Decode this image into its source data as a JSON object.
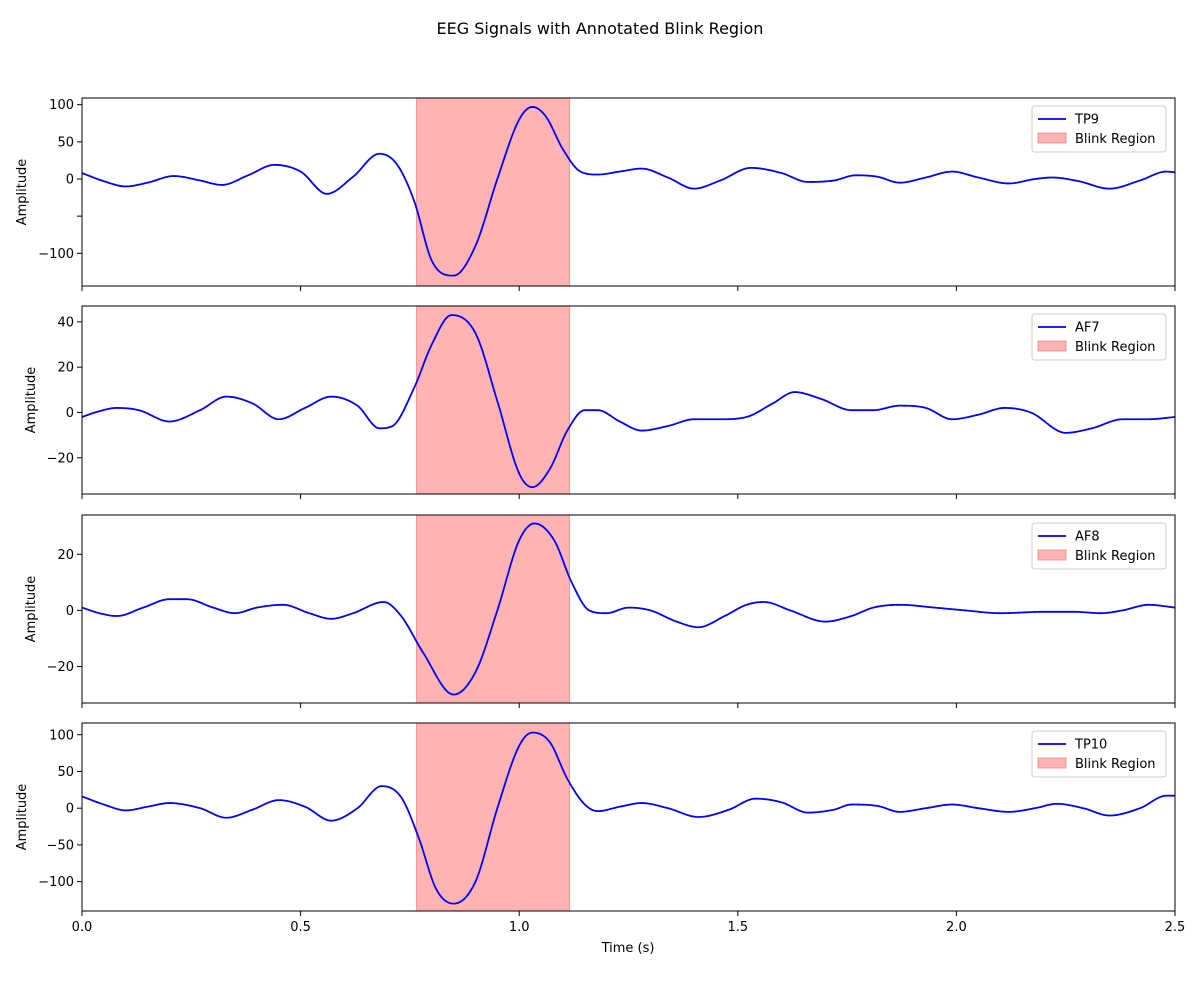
{
  "chart_data": {
    "type": "line",
    "title": "EEG Signals with Annotated Blink Region",
    "xlabel": "Time (s)",
    "xlim": [
      0,
      2.5
    ],
    "xticks": [
      0.0,
      0.5,
      1.0,
      1.5,
      2.0,
      2.5
    ],
    "xtick_labels": [
      "0.0",
      "0.5",
      "1.0",
      "1.5",
      "2.0",
      "2.5"
    ],
    "blink_region": {
      "label": "Blink Region",
      "x_start": 0.765,
      "x_end": 1.115,
      "color": "#ff9999"
    },
    "line_color": "#0000ff",
    "legend_position": "upper right",
    "grid": false,
    "panels": [
      {
        "name": "TP9",
        "ylabel": "Amplitude",
        "ylim": [
          -144,
          109
        ],
        "yticks": [
          100,
          50,
          0,
          -50,
          -100
        ],
        "ytick_labels": [
          "100",
          "50",
          "0",
          "−100"
        ],
        "ytick_label_values": [
          100,
          50,
          0,
          -100
        ],
        "series": {
          "name": "TP9",
          "x": [
            0.0,
            0.05,
            0.1,
            0.15,
            0.21,
            0.27,
            0.32,
            0.38,
            0.44,
            0.5,
            0.56,
            0.62,
            0.68,
            0.72,
            0.76,
            0.8,
            0.85,
            0.9,
            0.95,
            1.0,
            1.03,
            1.06,
            1.1,
            1.14,
            1.18,
            1.23,
            1.28,
            1.34,
            1.4,
            1.46,
            1.53,
            1.6,
            1.66,
            1.72,
            1.77,
            1.82,
            1.87,
            1.93,
            1.99,
            2.05,
            2.12,
            2.18,
            2.22,
            2.28,
            2.35,
            2.42,
            2.48,
            2.5
          ],
          "y": [
            8,
            -3,
            -10,
            -5,
            4,
            -2,
            -8,
            5,
            19,
            10,
            -20,
            3,
            34,
            20,
            -30,
            -110,
            -130,
            -90,
            0,
            80,
            97,
            85,
            40,
            10,
            6,
            10,
            14,
            2,
            -13,
            -2,
            15,
            8,
            -4,
            -2,
            5,
            3,
            -5,
            2,
            10,
            2,
            -6,
            0,
            2,
            -3,
            -13,
            -2,
            10,
            9
          ]
        }
      },
      {
        "name": "AF7",
        "ylabel": "Amplitude",
        "ylim": [
          -36,
          47
        ],
        "yticks": [
          40,
          20,
          0,
          -20
        ],
        "ytick_labels": [
          "40",
          "20",
          "0",
          "−20"
        ],
        "series": {
          "name": "AF7",
          "x": [
            0.0,
            0.03,
            0.08,
            0.13,
            0.2,
            0.27,
            0.33,
            0.39,
            0.45,
            0.51,
            0.57,
            0.63,
            0.68,
            0.71,
            0.76,
            0.8,
            0.845,
            0.9,
            0.95,
            1.0,
            1.03,
            1.07,
            1.11,
            1.15,
            1.18,
            1.23,
            1.28,
            1.34,
            1.4,
            1.46,
            1.52,
            1.58,
            1.63,
            1.69,
            1.76,
            1.81,
            1.87,
            1.93,
            1.99,
            2.05,
            2.11,
            2.17,
            2.25,
            2.31,
            2.38,
            2.44,
            2.5
          ],
          "y": [
            -2,
            0,
            2,
            1,
            -4,
            1,
            7,
            4,
            -3,
            2,
            7,
            3,
            -7,
            -6,
            11,
            30,
            43,
            35,
            5,
            -27,
            -33,
            -25,
            -8,
            1,
            1,
            -4,
            -8,
            -6,
            -3,
            -3,
            -2,
            4,
            9,
            6,
            1,
            1,
            3,
            2,
            -3,
            -1,
            2,
            0,
            -9,
            -7,
            -3,
            -3,
            -2
          ]
        }
      },
      {
        "name": "AF8",
        "ylabel": "Amplitude",
        "ylim": [
          -33,
          34
        ],
        "yticks": [
          20,
          0,
          -20
        ],
        "ytick_labels": [
          "20",
          "0",
          "−20"
        ],
        "series": {
          "name": "AF8",
          "x": [
            0.0,
            0.04,
            0.08,
            0.14,
            0.2,
            0.24,
            0.3,
            0.35,
            0.4,
            0.46,
            0.52,
            0.57,
            0.62,
            0.69,
            0.73,
            0.78,
            0.85,
            0.9,
            0.95,
            1.0,
            1.035,
            1.08,
            1.12,
            1.16,
            1.2,
            1.25,
            1.3,
            1.36,
            1.41,
            1.47,
            1.52,
            1.56,
            1.62,
            1.7,
            1.76,
            1.81,
            1.87,
            1.95,
            2.02,
            2.1,
            2.2,
            2.27,
            2.33,
            2.38,
            2.44,
            2.5
          ],
          "y": [
            1,
            -1,
            -2,
            1,
            4,
            4,
            1,
            -1,
            1,
            2,
            -1,
            -3,
            -1,
            3,
            -2,
            -15,
            -30,
            -22,
            0,
            25,
            31,
            25,
            10,
            0,
            -1,
            1,
            0,
            -4,
            -6,
            -2,
            2,
            3,
            0,
            -4,
            -2,
            1,
            2,
            1,
            0,
            -1,
            -0.5,
            -0.5,
            -1,
            0,
            2,
            1
          ]
        }
      },
      {
        "name": "TP10",
        "ylabel": "Amplitude",
        "ylim": [
          -140,
          116
        ],
        "yticks": [
          100,
          50,
          0,
          -50,
          -100
        ],
        "ytick_labels": [
          "100",
          "50",
          "0",
          "−50",
          "−100"
        ],
        "series": {
          "name": "TP10",
          "x": [
            0.0,
            0.05,
            0.1,
            0.15,
            0.2,
            0.27,
            0.33,
            0.39,
            0.45,
            0.51,
            0.57,
            0.63,
            0.685,
            0.73,
            0.77,
            0.81,
            0.85,
            0.9,
            0.95,
            1.0,
            1.03,
            1.07,
            1.11,
            1.15,
            1.18,
            1.23,
            1.28,
            1.34,
            1.41,
            1.48,
            1.54,
            1.6,
            1.66,
            1.72,
            1.76,
            1.82,
            1.87,
            1.93,
            1.99,
            2.05,
            2.12,
            2.18,
            2.23,
            2.29,
            2.35,
            2.42,
            2.48,
            2.5
          ],
          "y": [
            16,
            5,
            -3,
            2,
            7,
            0,
            -13,
            -2,
            11,
            2,
            -17,
            0,
            30,
            15,
            -40,
            -110,
            -130,
            -100,
            0,
            85,
            103,
            90,
            40,
            5,
            -4,
            2,
            7,
            0,
            -12,
            -2,
            13,
            8,
            -6,
            -2,
            5,
            3,
            -5,
            0,
            5,
            0,
            -5,
            0,
            6,
            0,
            -10,
            0,
            17,
            17
          ]
        }
      }
    ]
  }
}
